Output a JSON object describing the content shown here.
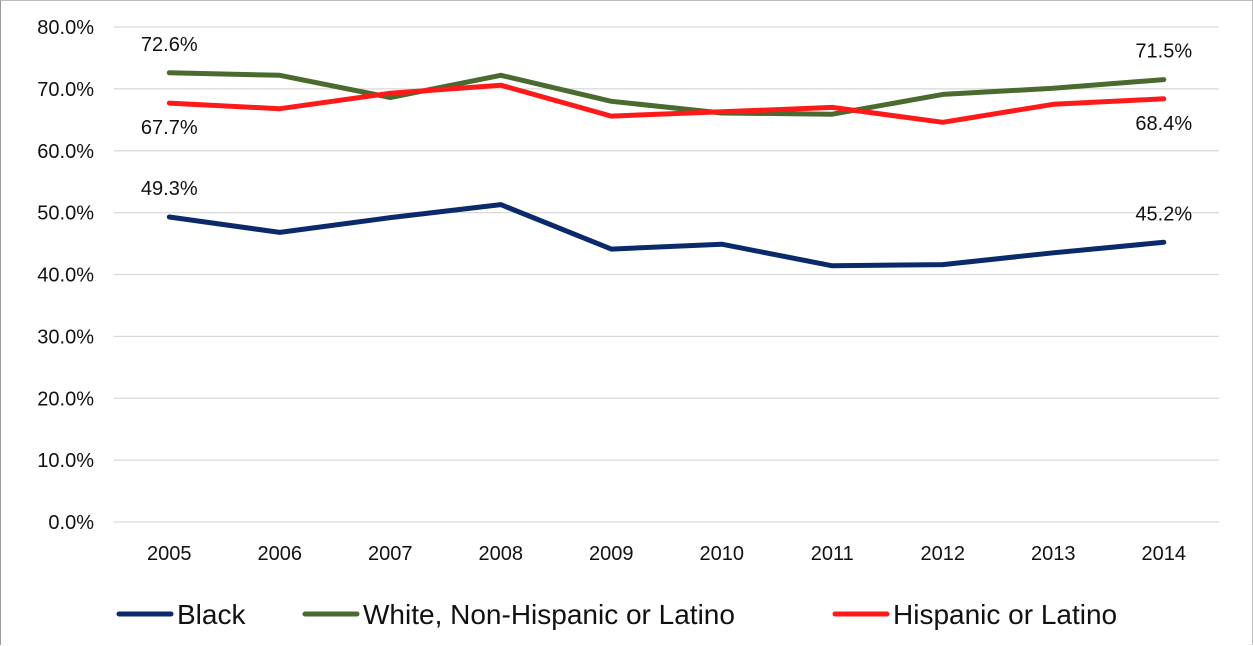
{
  "chart_data": {
    "type": "line",
    "title": "",
    "xlabel": "",
    "ylabel": "",
    "x": [
      "2005",
      "2006",
      "2007",
      "2008",
      "2009",
      "2010",
      "2011",
      "2012",
      "2013",
      "2014"
    ],
    "ylim": [
      0,
      80
    ],
    "yticks": [
      "0.0%",
      "10.0%",
      "20.0%",
      "30.0%",
      "40.0%",
      "50.0%",
      "60.0%",
      "70.0%",
      "80.0%"
    ],
    "grid": "horizontal",
    "legend_position": "bottom",
    "series": [
      {
        "name": "Black",
        "color": "#0b2a6b",
        "values": [
          49.3,
          46.8,
          49.2,
          51.3,
          44.1,
          44.9,
          41.4,
          41.6,
          43.5,
          45.2
        ]
      },
      {
        "name": "White, Non-Hispanic or Latino",
        "color": "#4a6a2f",
        "values": [
          72.6,
          72.2,
          68.6,
          72.2,
          68.0,
          66.1,
          65.9,
          69.1,
          70.1,
          71.5
        ]
      },
      {
        "name": "Hispanic or Latino",
        "color": "#ff1a1a",
        "values": [
          67.7,
          66.8,
          69.3,
          70.6,
          65.6,
          66.3,
          67.0,
          64.6,
          67.5,
          68.4
        ]
      }
    ],
    "data_labels": [
      {
        "series": 1,
        "index": 0,
        "text": "72.6%",
        "pos": "above"
      },
      {
        "series": 2,
        "index": 0,
        "text": "67.7%",
        "pos": "below"
      },
      {
        "series": 0,
        "index": 0,
        "text": "49.3%",
        "pos": "above"
      },
      {
        "series": 1,
        "index": 9,
        "text": "71.5%",
        "pos": "above"
      },
      {
        "series": 2,
        "index": 9,
        "text": "68.4%",
        "pos": "below"
      },
      {
        "series": 0,
        "index": 9,
        "text": "45.2%",
        "pos": "above"
      }
    ]
  }
}
